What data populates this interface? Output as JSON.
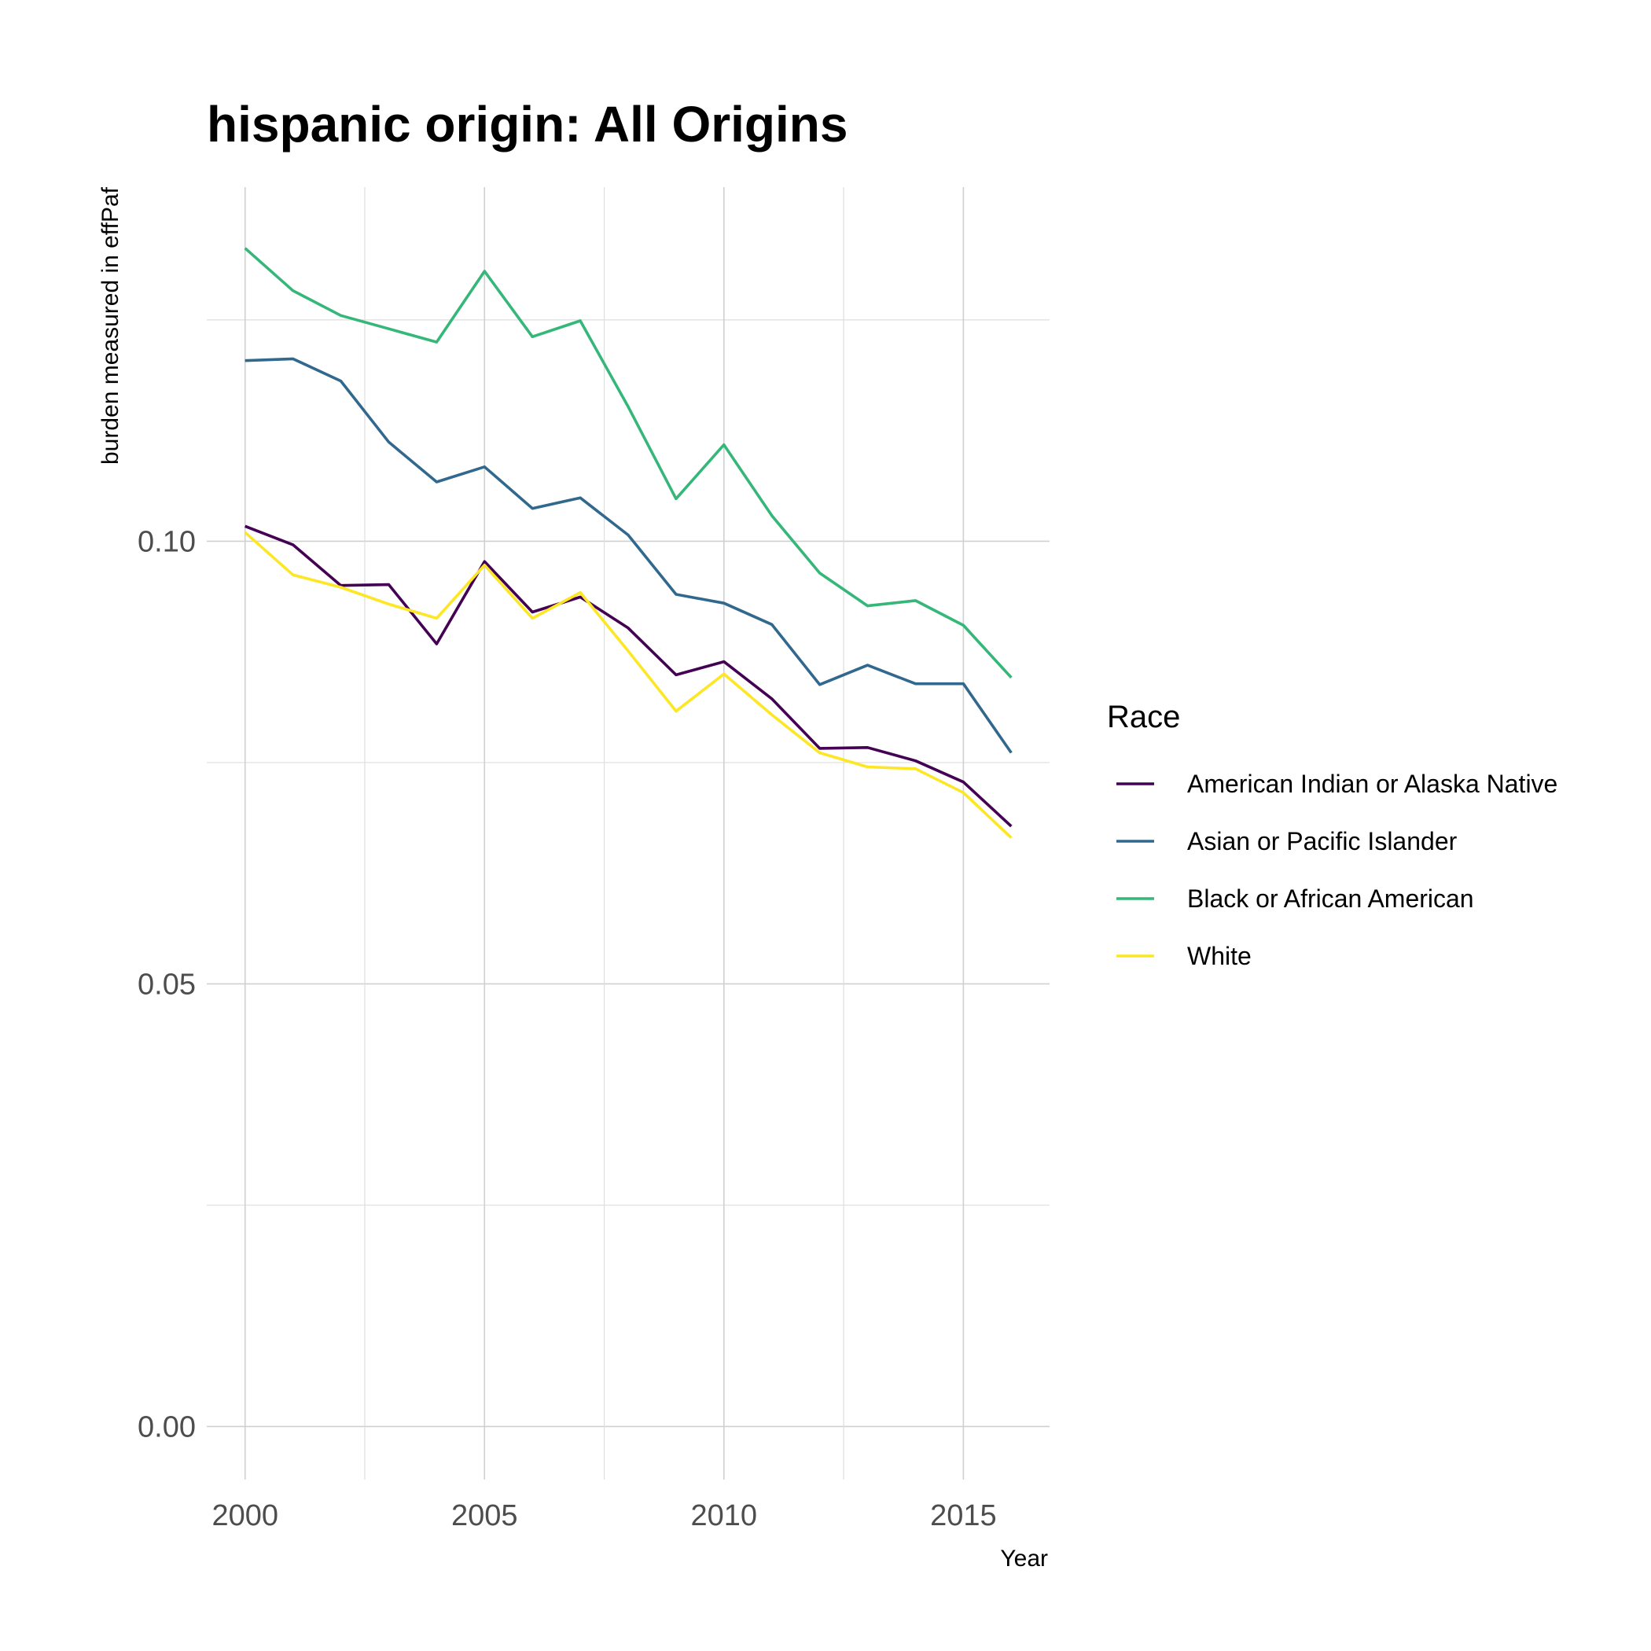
{
  "chart_data": {
    "type": "line",
    "title": "hispanic origin: All Origins",
    "xlabel": "Year",
    "ylabel": "burden measured in effPaf",
    "xlim": [
      1999.2,
      2016.8
    ],
    "ylim": [
      -0.006,
      0.14
    ],
    "x_ticks": [
      2000,
      2005,
      2010,
      2015
    ],
    "y_ticks": [
      0.0,
      0.05,
      0.1
    ],
    "y_tick_labels": [
      "0.00",
      "0.05",
      "0.10"
    ],
    "grid": true,
    "legend_title": "Race",
    "legend_position": "right",
    "x": [
      2000,
      2001,
      2002,
      2003,
      2004,
      2005,
      2006,
      2007,
      2008,
      2009,
      2010,
      2011,
      2012,
      2013,
      2014,
      2015,
      2016
    ],
    "series": [
      {
        "name": "American Indian or Alaska Native",
        "color": "#440154",
        "values": [
          0.1017,
          0.0996,
          0.095,
          0.0951,
          0.0884,
          0.0977,
          0.092,
          0.0937,
          0.0902,
          0.0849,
          0.0864,
          0.0822,
          0.0766,
          0.0767,
          0.0752,
          0.0728,
          0.0678
        ]
      },
      {
        "name": "Asian or Pacific Islander",
        "color": "#31688e",
        "values": [
          0.1204,
          0.1206,
          0.1181,
          0.1112,
          0.1067,
          0.1084,
          0.1037,
          0.1049,
          0.1007,
          0.094,
          0.093,
          0.0906,
          0.0838,
          0.086,
          0.0839,
          0.0839,
          0.0761
        ]
      },
      {
        "name": "Black or African American",
        "color": "#35b779",
        "values": [
          0.1331,
          0.1283,
          0.1255,
          0.124,
          0.1225,
          0.1305,
          0.1231,
          0.1249,
          0.1152,
          0.1048,
          0.1109,
          0.1029,
          0.0964,
          0.0927,
          0.0933,
          0.0905,
          0.0846
        ]
      },
      {
        "name": "White",
        "color": "#fde725",
        "values": [
          0.101,
          0.0962,
          0.0948,
          0.0929,
          0.0913,
          0.0973,
          0.0913,
          0.0942,
          0.0876,
          0.0808,
          0.085,
          0.0804,
          0.0761,
          0.0745,
          0.0743,
          0.0716,
          0.0665
        ]
      }
    ]
  }
}
